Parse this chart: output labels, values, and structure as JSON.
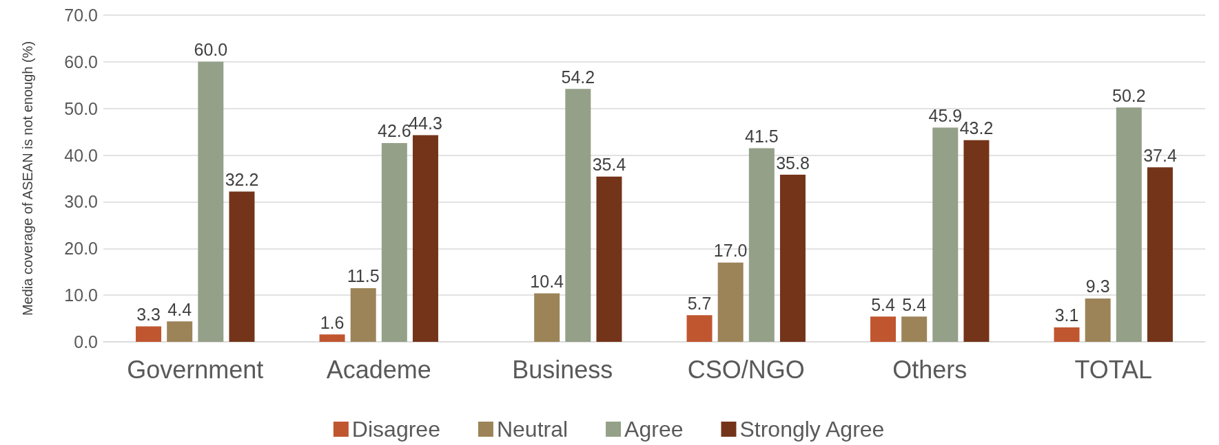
{
  "chart_data": {
    "type": "bar",
    "ylabel": "Media coverage of ASEAN is not enough (%)",
    "categories": [
      "Government",
      "Academe",
      "Business",
      "CSO/NGO",
      "Others",
      "TOTAL"
    ],
    "series": [
      {
        "name": "Disagree",
        "color": "#c0562f",
        "values": [
          3.3,
          1.6,
          null,
          5.7,
          5.4,
          3.1
        ],
        "value_labels": [
          "3.3",
          "1.6",
          null,
          "5.7",
          "5.4",
          "3.1"
        ]
      },
      {
        "name": "Neutral",
        "color": "#9c8458",
        "values": [
          4.4,
          11.5,
          10.4,
          17.0,
          5.4,
          9.3
        ],
        "value_labels": [
          "4.4",
          "11.5",
          "10.4",
          "17.0",
          "5.4",
          "9.3"
        ]
      },
      {
        "name": "Agree",
        "color": "#94a088",
        "values": [
          60.0,
          42.6,
          54.2,
          41.5,
          45.9,
          50.2
        ],
        "value_labels": [
          "60.0",
          "42.6",
          "54.2",
          "41.5",
          "45.9",
          "50.2"
        ]
      },
      {
        "name": "Strongly Agree",
        "color": "#74341a",
        "values": [
          32.2,
          44.3,
          35.4,
          35.8,
          43.2,
          37.4
        ],
        "value_labels": [
          "32.2",
          "44.3",
          "35.4",
          "35.8",
          "43.2",
          "37.4"
        ]
      }
    ],
    "ylim": [
      0,
      70
    ],
    "yticks": [
      {
        "value": 0,
        "label": "0.0"
      },
      {
        "value": 10,
        "label": "10.0"
      },
      {
        "value": 20,
        "label": "20.0"
      },
      {
        "value": 30,
        "label": "30.0"
      },
      {
        "value": 40,
        "label": "40.0"
      },
      {
        "value": 50,
        "label": "50.0"
      },
      {
        "value": 60,
        "label": "60.0"
      },
      {
        "value": 70,
        "label": "70.0"
      }
    ],
    "grid": "y",
    "legend": "bottom"
  }
}
